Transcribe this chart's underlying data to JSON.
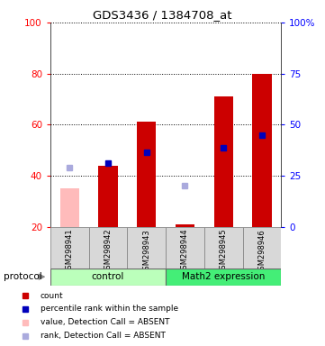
{
  "title": "GDS3436 / 1384708_at",
  "samples": [
    "GSM298941",
    "GSM298942",
    "GSM298943",
    "GSM298944",
    "GSM298945",
    "GSM298946"
  ],
  "red_bars": [
    null,
    44,
    61,
    21,
    71,
    80
  ],
  "pink_bars": [
    35,
    null,
    null,
    null,
    null,
    null
  ],
  "blue_squares": [
    null,
    45,
    49,
    null,
    51,
    56
  ],
  "lavender_squares": [
    43,
    null,
    null,
    36,
    null,
    null
  ],
  "bar_width": 0.5,
  "red_color": "#cc0000",
  "pink_color": "#ffbbbb",
  "blue_color": "#0000bb",
  "lavender_color": "#aaaadd",
  "yticks_left": [
    20,
    40,
    60,
    80,
    100
  ],
  "yticks_right_labels": [
    "0",
    "25",
    "50",
    "75",
    "100%"
  ],
  "yticks_right_pos": [
    20,
    40,
    60,
    80,
    100
  ],
  "grid_lines": [
    40,
    60,
    80,
    100
  ],
  "control_color": "#bbffbb",
  "math2_color": "#44ee77",
  "sample_bg_color": "#d8d8d8",
  "legend_labels": [
    "count",
    "percentile rank within the sample",
    "value, Detection Call = ABSENT",
    "rank, Detection Call = ABSENT"
  ],
  "legend_colors": [
    "#cc0000",
    "#0000bb",
    "#ffbbbb",
    "#aaaadd"
  ]
}
